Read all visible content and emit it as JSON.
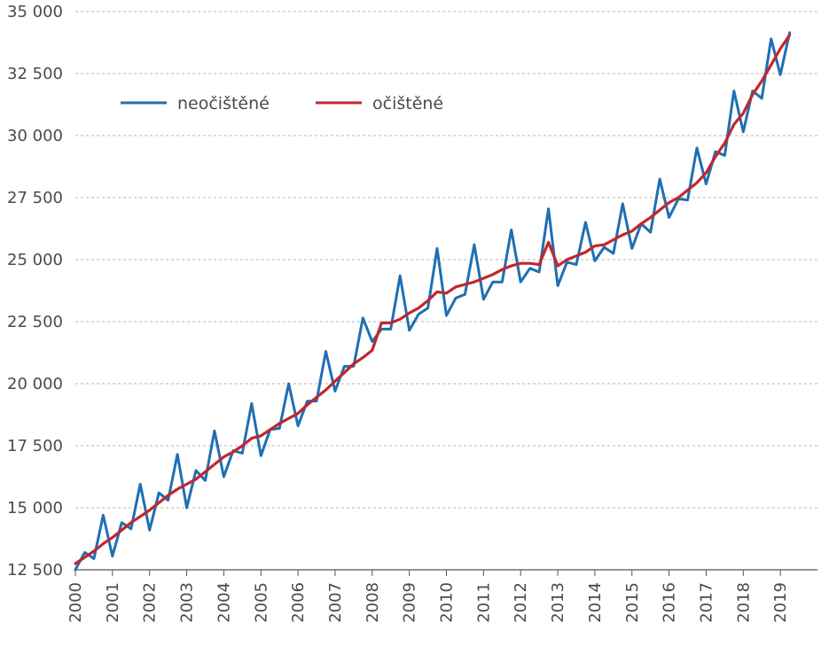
{
  "chart_data": {
    "type": "line",
    "title": "",
    "xlabel": "",
    "ylabel": "",
    "ylim": [
      12500,
      35000
    ],
    "xlim": [
      2000.0,
      2020.0
    ],
    "grid": "horizontal dashed",
    "legend_position": "top-left",
    "yticks": [
      12500,
      15000,
      17500,
      20000,
      22500,
      25000,
      27500,
      30000,
      32500,
      35000
    ],
    "ytick_labels": [
      "12 500",
      "15 000",
      "17 500",
      "20 000",
      "22 500",
      "25 000",
      "27 500",
      "30 000",
      "32 500",
      "35 000"
    ],
    "xtick_labels": [
      "2000",
      "2001",
      "2002",
      "2003",
      "2004",
      "2005",
      "2006",
      "2007",
      "2008",
      "2009",
      "2010",
      "2011",
      "2012",
      "2013",
      "2014",
      "2015",
      "2016",
      "2017",
      "2018",
      "2019"
    ],
    "series": [
      {
        "name": "neočištěné",
        "color": "#1f6fb2",
        "x": [
          2000.0,
          2000.25,
          2000.5,
          2000.75,
          2001.0,
          2001.25,
          2001.5,
          2001.75,
          2002.0,
          2002.25,
          2002.5,
          2002.75,
          2003.0,
          2003.25,
          2003.5,
          2003.75,
          2004.0,
          2004.25,
          2004.5,
          2004.75,
          2005.0,
          2005.25,
          2005.5,
          2005.75,
          2006.0,
          2006.25,
          2006.5,
          2006.75,
          2007.0,
          2007.25,
          2007.5,
          2007.75,
          2008.0,
          2008.25,
          2008.5,
          2008.75,
          2009.0,
          2009.25,
          2009.5,
          2009.75,
          2010.0,
          2010.25,
          2010.5,
          2010.75,
          2011.0,
          2011.25,
          2011.5,
          2011.75,
          2012.0,
          2012.25,
          2012.5,
          2012.75,
          2013.0,
          2013.25,
          2013.5,
          2013.75,
          2014.0,
          2014.25,
          2014.5,
          2014.75,
          2015.0,
          2015.25,
          2015.5,
          2015.75,
          2016.0,
          2016.25,
          2016.5,
          2016.75,
          2017.0,
          2017.25,
          2017.5,
          2017.75,
          2018.0,
          2018.25,
          2018.5,
          2018.75,
          2019.0,
          2019.25
        ],
        "values": [
          12500,
          13200,
          12950,
          14700,
          13050,
          14400,
          14150,
          15950,
          14100,
          15600,
          15300,
          17150,
          15000,
          16500,
          16100,
          18100,
          16250,
          17300,
          17200,
          19200,
          17100,
          18150,
          18200,
          20000,
          18300,
          19300,
          19300,
          21300,
          19700,
          20700,
          20700,
          22650,
          21700,
          22200,
          22200,
          24350,
          22150,
          22800,
          23050,
          25450,
          22750,
          23450,
          23600,
          25600,
          23400,
          24100,
          24100,
          26200,
          24100,
          24650,
          24500,
          27050,
          23950,
          24900,
          24800,
          26500,
          24950,
          25500,
          25250,
          27250,
          25450,
          26450,
          26100,
          28250,
          26700,
          27450,
          27400,
          29500,
          28050,
          29350,
          29200,
          31800,
          30150,
          31800,
          31500,
          33900,
          32450,
          34150
        ]
      },
      {
        "name": "očištěné",
        "color": "#c0272d",
        "x": [
          2000.0,
          2000.25,
          2000.5,
          2000.75,
          2001.0,
          2001.25,
          2001.5,
          2001.75,
          2002.0,
          2002.25,
          2002.5,
          2002.75,
          2003.0,
          2003.25,
          2003.5,
          2003.75,
          2004.0,
          2004.25,
          2004.5,
          2004.75,
          2005.0,
          2005.25,
          2005.5,
          2005.75,
          2006.0,
          2006.25,
          2006.5,
          2006.75,
          2007.0,
          2007.25,
          2007.5,
          2007.75,
          2008.0,
          2008.25,
          2008.5,
          2008.75,
          2009.0,
          2009.25,
          2009.5,
          2009.75,
          2010.0,
          2010.25,
          2010.5,
          2010.75,
          2011.0,
          2011.25,
          2011.5,
          2011.75,
          2012.0,
          2012.25,
          2012.5,
          2012.75,
          2013.0,
          2013.25,
          2013.5,
          2013.75,
          2014.0,
          2014.25,
          2014.5,
          2014.75,
          2015.0,
          2015.25,
          2015.5,
          2015.75,
          2016.0,
          2016.25,
          2016.5,
          2016.75,
          2017.0,
          2017.25,
          2017.5,
          2017.75,
          2018.0,
          2018.25,
          2018.5,
          2018.75,
          2019.0,
          2019.25
        ],
        "values": [
          12750,
          13000,
          13250,
          13550,
          13800,
          14100,
          14400,
          14650,
          14900,
          15200,
          15500,
          15750,
          15950,
          16150,
          16450,
          16750,
          17050,
          17250,
          17500,
          17800,
          17900,
          18150,
          18400,
          18600,
          18800,
          19150,
          19450,
          19750,
          20100,
          20450,
          20800,
          21050,
          21350,
          22450,
          22450,
          22600,
          22850,
          23050,
          23350,
          23700,
          23650,
          23900,
          24000,
          24100,
          24250,
          24400,
          24600,
          24750,
          24850,
          24850,
          24800,
          25700,
          24750,
          25000,
          25150,
          25300,
          25550,
          25600,
          25800,
          26000,
          26150,
          26450,
          26700,
          27000,
          27300,
          27500,
          27800,
          28100,
          28500,
          29150,
          29700,
          30450,
          30900,
          31650,
          32200,
          32850,
          33500,
          34050
        ]
      }
    ]
  }
}
